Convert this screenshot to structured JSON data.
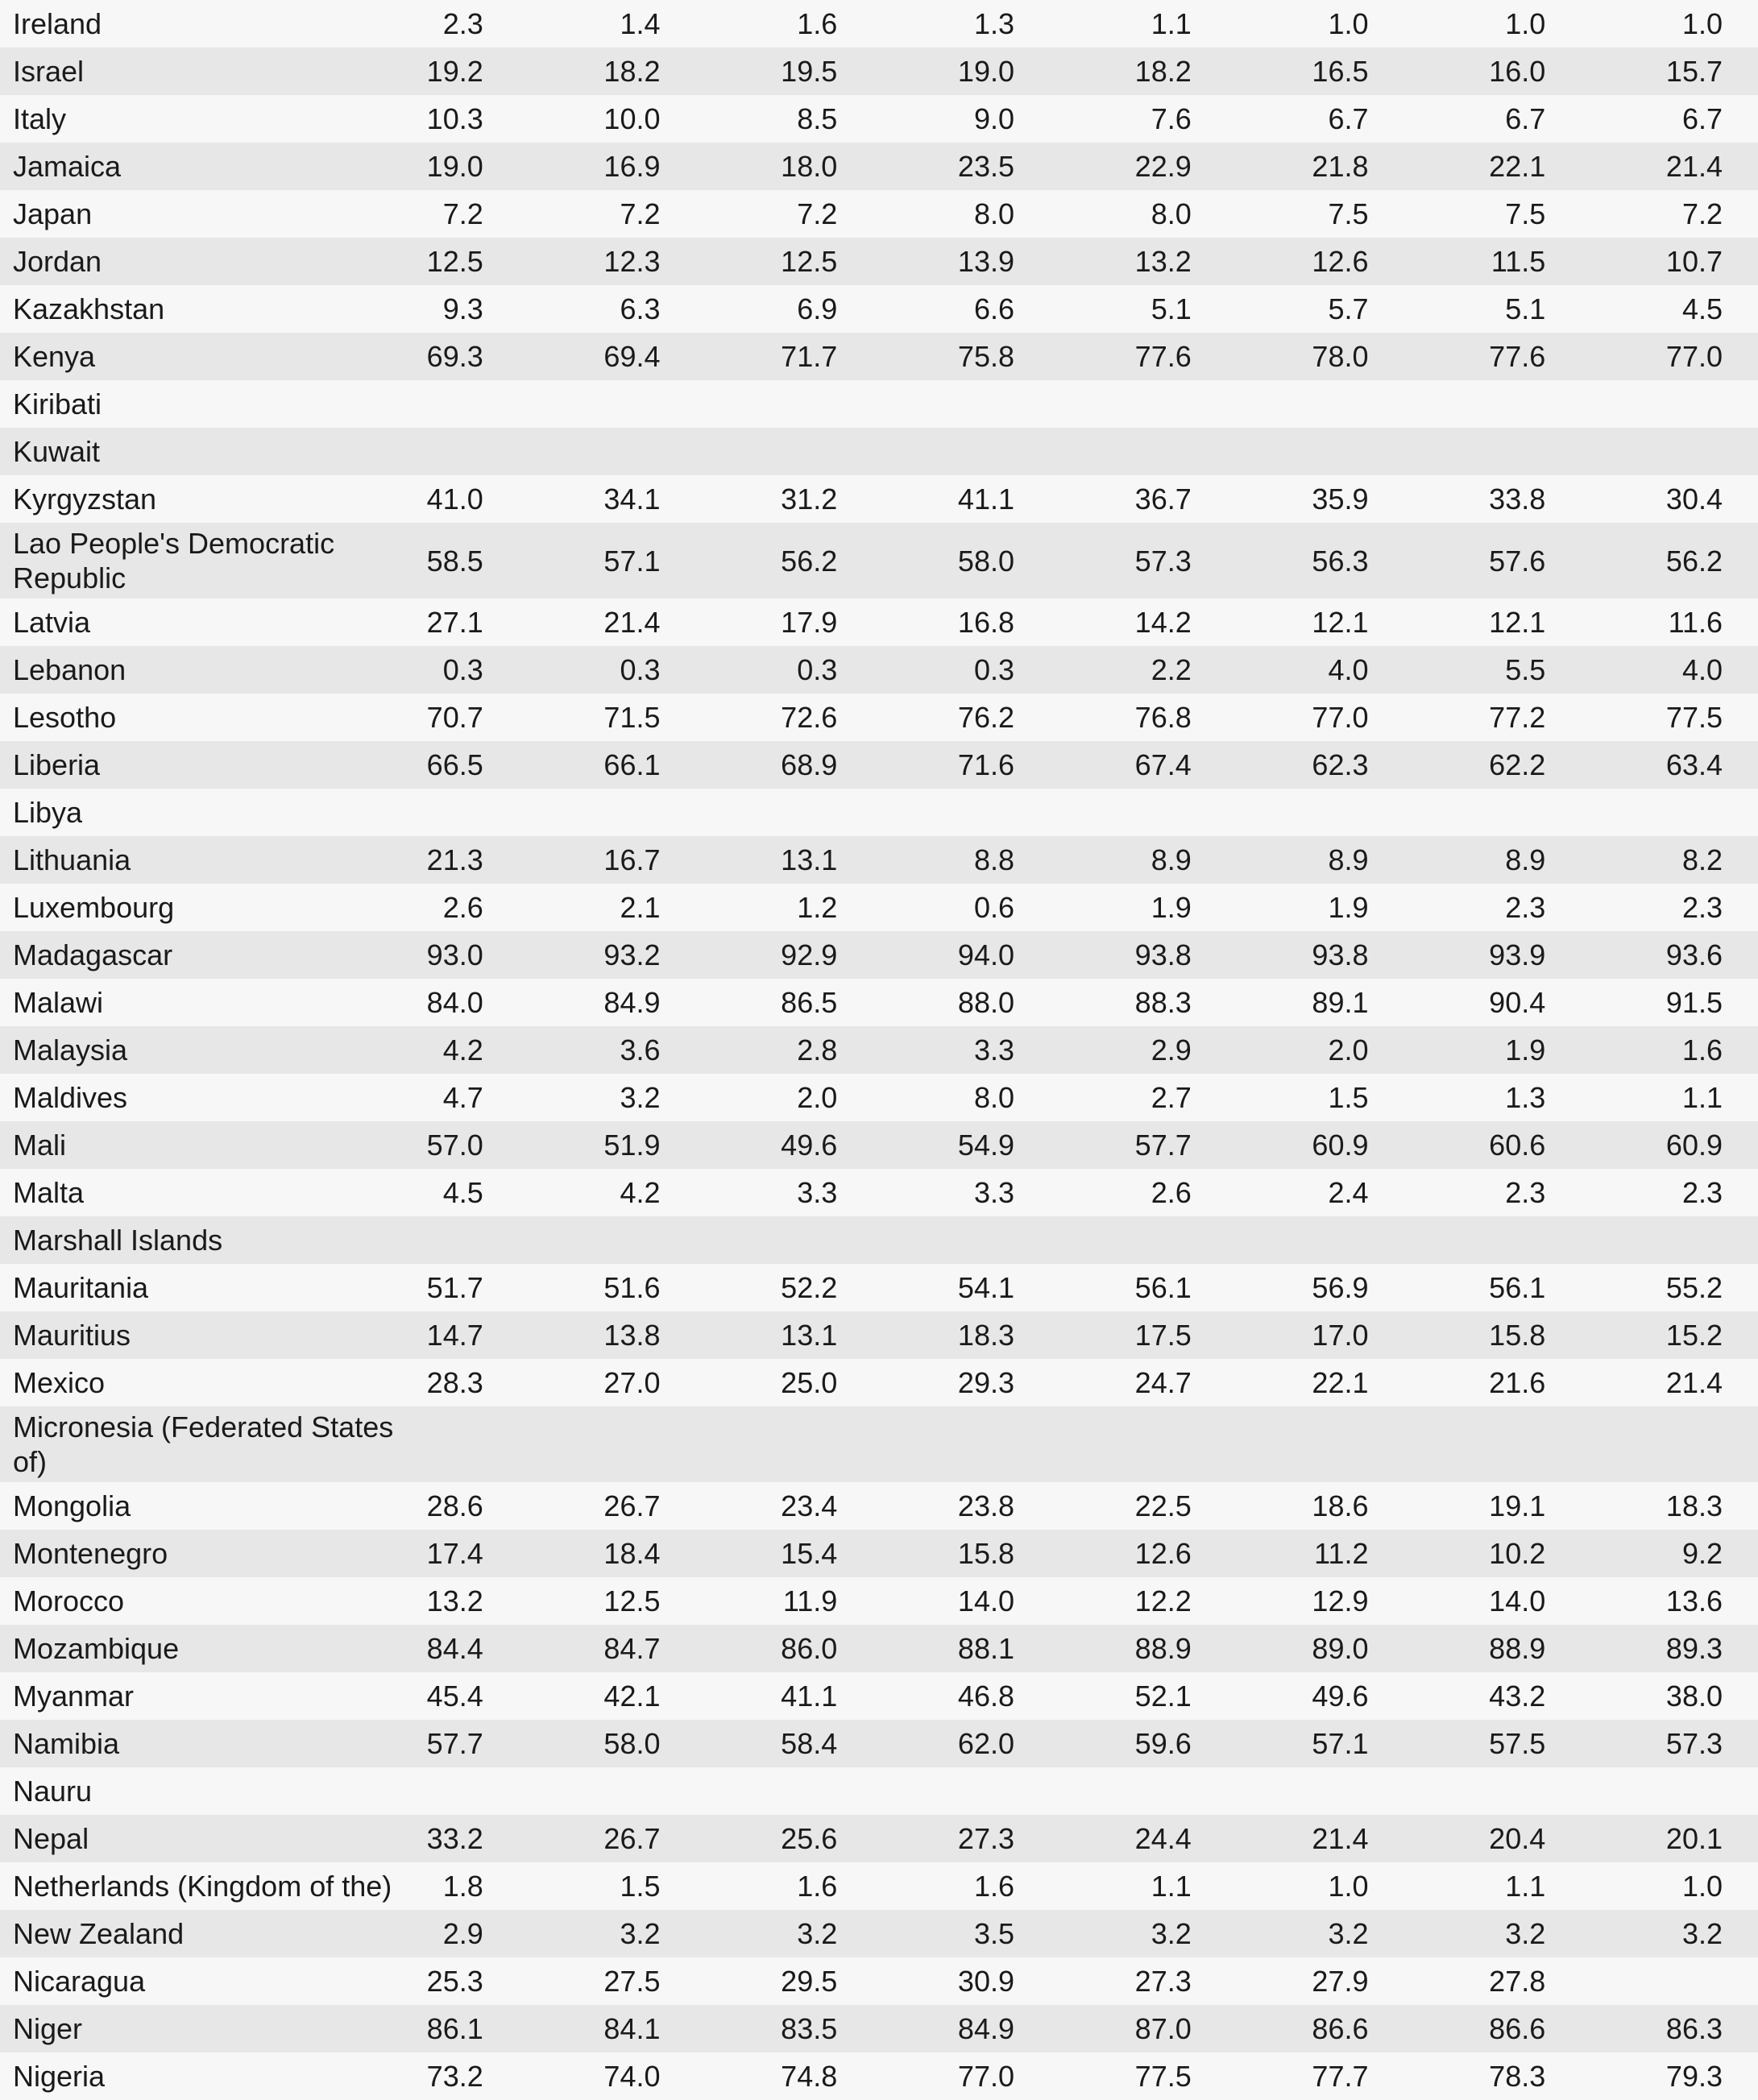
{
  "colors": {
    "stripe_odd": "#f7f7f7",
    "stripe_even": "#e7e7e7",
    "text": "#1a1a1a"
  },
  "chart_data": {
    "type": "table",
    "title": "",
    "notes": "Country rows with 8 numeric value columns; blank cells where no data shown",
    "rows": [
      {
        "country": "Ireland",
        "values": [
          "2.3",
          "1.4",
          "1.6",
          "1.3",
          "1.1",
          "1.0",
          "1.0",
          "1.0"
        ]
      },
      {
        "country": "Israel",
        "values": [
          "19.2",
          "18.2",
          "19.5",
          "19.0",
          "18.2",
          "16.5",
          "16.0",
          "15.7"
        ]
      },
      {
        "country": "Italy",
        "values": [
          "10.3",
          "10.0",
          "8.5",
          "9.0",
          "7.6",
          "6.7",
          "6.7",
          "6.7"
        ]
      },
      {
        "country": "Jamaica",
        "values": [
          "19.0",
          "16.9",
          "18.0",
          "23.5",
          "22.9",
          "21.8",
          "22.1",
          "21.4"
        ]
      },
      {
        "country": "Japan",
        "values": [
          "7.2",
          "7.2",
          "7.2",
          "8.0",
          "8.0",
          "7.5",
          "7.5",
          "7.2"
        ]
      },
      {
        "country": "Jordan",
        "values": [
          "12.5",
          "12.3",
          "12.5",
          "13.9",
          "13.2",
          "12.6",
          "11.5",
          "10.7"
        ]
      },
      {
        "country": "Kazakhstan",
        "values": [
          "9.3",
          "6.3",
          "6.9",
          "6.6",
          "5.1",
          "5.7",
          "5.1",
          "4.5"
        ]
      },
      {
        "country": "Kenya",
        "values": [
          "69.3",
          "69.4",
          "71.7",
          "75.8",
          "77.6",
          "78.0",
          "77.6",
          "77.0"
        ]
      },
      {
        "country": "Kiribati",
        "values": [
          "",
          "",
          "",
          "",
          "",
          "",
          "",
          ""
        ]
      },
      {
        "country": "Kuwait",
        "values": [
          "",
          "",
          "",
          "",
          "",
          "",
          "",
          ""
        ]
      },
      {
        "country": "Kyrgyzstan",
        "values": [
          "41.0",
          "34.1",
          "31.2",
          "41.1",
          "36.7",
          "35.9",
          "33.8",
          "30.4"
        ]
      },
      {
        "country": "Lao People's Democratic\nRepublic",
        "values": [
          "58.5",
          "57.1",
          "56.2",
          "58.0",
          "57.3",
          "56.3",
          "57.6",
          "56.2"
        ]
      },
      {
        "country": "Latvia",
        "values": [
          "27.1",
          "21.4",
          "17.9",
          "16.8",
          "14.2",
          "12.1",
          "12.1",
          "11.6"
        ]
      },
      {
        "country": "Lebanon",
        "values": [
          "0.3",
          "0.3",
          "0.3",
          "0.3",
          "2.2",
          "4.0",
          "5.5",
          "4.0"
        ]
      },
      {
        "country": "Lesotho",
        "values": [
          "70.7",
          "71.5",
          "72.6",
          "76.2",
          "76.8",
          "77.0",
          "77.2",
          "77.5"
        ]
      },
      {
        "country": "Liberia",
        "values": [
          "66.5",
          "66.1",
          "68.9",
          "71.6",
          "67.4",
          "62.3",
          "62.2",
          "63.4"
        ]
      },
      {
        "country": "Libya",
        "values": [
          "",
          "",
          "",
          "",
          "",
          "",
          "",
          ""
        ]
      },
      {
        "country": "Lithuania",
        "values": [
          "21.3",
          "16.7",
          "13.1",
          "8.8",
          "8.9",
          "8.9",
          "8.9",
          "8.2"
        ]
      },
      {
        "country": "Luxembourg",
        "values": [
          "2.6",
          "2.1",
          "1.2",
          "0.6",
          "1.9",
          "1.9",
          "2.3",
          "2.3"
        ]
      },
      {
        "country": "Madagascar",
        "values": [
          "93.0",
          "93.2",
          "92.9",
          "94.0",
          "93.8",
          "93.8",
          "93.9",
          "93.6"
        ]
      },
      {
        "country": "Malawi",
        "values": [
          "84.0",
          "84.9",
          "86.5",
          "88.0",
          "88.3",
          "89.1",
          "90.4",
          "91.5"
        ]
      },
      {
        "country": "Malaysia",
        "values": [
          "4.2",
          "3.6",
          "2.8",
          "3.3",
          "2.9",
          "2.0",
          "1.9",
          "1.6"
        ]
      },
      {
        "country": "Maldives",
        "values": [
          "4.7",
          "3.2",
          "2.0",
          "8.0",
          "2.7",
          "1.5",
          "1.3",
          "1.1"
        ]
      },
      {
        "country": "Mali",
        "values": [
          "57.0",
          "51.9",
          "49.6",
          "54.9",
          "57.7",
          "60.9",
          "60.6",
          "60.9"
        ]
      },
      {
        "country": "Malta",
        "values": [
          "4.5",
          "4.2",
          "3.3",
          "3.3",
          "2.6",
          "2.4",
          "2.3",
          "2.3"
        ]
      },
      {
        "country": "Marshall Islands",
        "values": [
          "",
          "",
          "",
          "",
          "",
          "",
          "",
          ""
        ]
      },
      {
        "country": "Mauritania",
        "values": [
          "51.7",
          "51.6",
          "52.2",
          "54.1",
          "56.1",
          "56.9",
          "56.1",
          "55.2"
        ]
      },
      {
        "country": "Mauritius",
        "values": [
          "14.7",
          "13.8",
          "13.1",
          "18.3",
          "17.5",
          "17.0",
          "15.8",
          "15.2"
        ]
      },
      {
        "country": "Mexico",
        "values": [
          "28.3",
          "27.0",
          "25.0",
          "29.3",
          "24.7",
          "22.1",
          "21.6",
          "21.4"
        ]
      },
      {
        "country": "Micronesia (Federated States\nof)",
        "values": [
          "",
          "",
          "",
          "",
          "",
          "",
          "",
          ""
        ]
      },
      {
        "country": "Mongolia",
        "values": [
          "28.6",
          "26.7",
          "23.4",
          "23.8",
          "22.5",
          "18.6",
          "19.1",
          "18.3"
        ]
      },
      {
        "country": "Montenegro",
        "values": [
          "17.4",
          "18.4",
          "15.4",
          "15.8",
          "12.6",
          "11.2",
          "10.2",
          "9.2"
        ]
      },
      {
        "country": "Morocco",
        "values": [
          "13.2",
          "12.5",
          "11.9",
          "14.0",
          "12.2",
          "12.9",
          "14.0",
          "13.6"
        ]
      },
      {
        "country": "Mozambique",
        "values": [
          "84.4",
          "84.7",
          "86.0",
          "88.1",
          "88.9",
          "89.0",
          "88.9",
          "89.3"
        ]
      },
      {
        "country": "Myanmar",
        "values": [
          "45.4",
          "42.1",
          "41.1",
          "46.8",
          "52.1",
          "49.6",
          "43.2",
          "38.0"
        ]
      },
      {
        "country": "Namibia",
        "values": [
          "57.7",
          "58.0",
          "58.4",
          "62.0",
          "59.6",
          "57.1",
          "57.5",
          "57.3"
        ]
      },
      {
        "country": "Nauru",
        "values": [
          "",
          "",
          "",
          "",
          "",
          "",
          "",
          ""
        ]
      },
      {
        "country": "Nepal",
        "values": [
          "33.2",
          "26.7",
          "25.6",
          "27.3",
          "24.4",
          "21.4",
          "20.4",
          "20.1"
        ]
      },
      {
        "country": "Netherlands (Kingdom of the)",
        "values": [
          "1.8",
          "1.5",
          "1.6",
          "1.6",
          "1.1",
          "1.0",
          "1.1",
          "1.0"
        ]
      },
      {
        "country": "New Zealand",
        "values": [
          "2.9",
          "3.2",
          "3.2",
          "3.5",
          "3.2",
          "3.2",
          "3.2",
          "3.2"
        ]
      },
      {
        "country": "Nicaragua",
        "values": [
          "25.3",
          "27.5",
          "29.5",
          "30.9",
          "27.3",
          "27.9",
          "27.8",
          ""
        ]
      },
      {
        "country": "Niger",
        "values": [
          "86.1",
          "84.1",
          "83.5",
          "84.9",
          "87.0",
          "86.6",
          "86.6",
          "86.3"
        ]
      },
      {
        "country": "Nigeria",
        "values": [
          "73.2",
          "74.0",
          "74.8",
          "77.0",
          "77.5",
          "77.7",
          "78.3",
          "79.3"
        ]
      }
    ]
  }
}
